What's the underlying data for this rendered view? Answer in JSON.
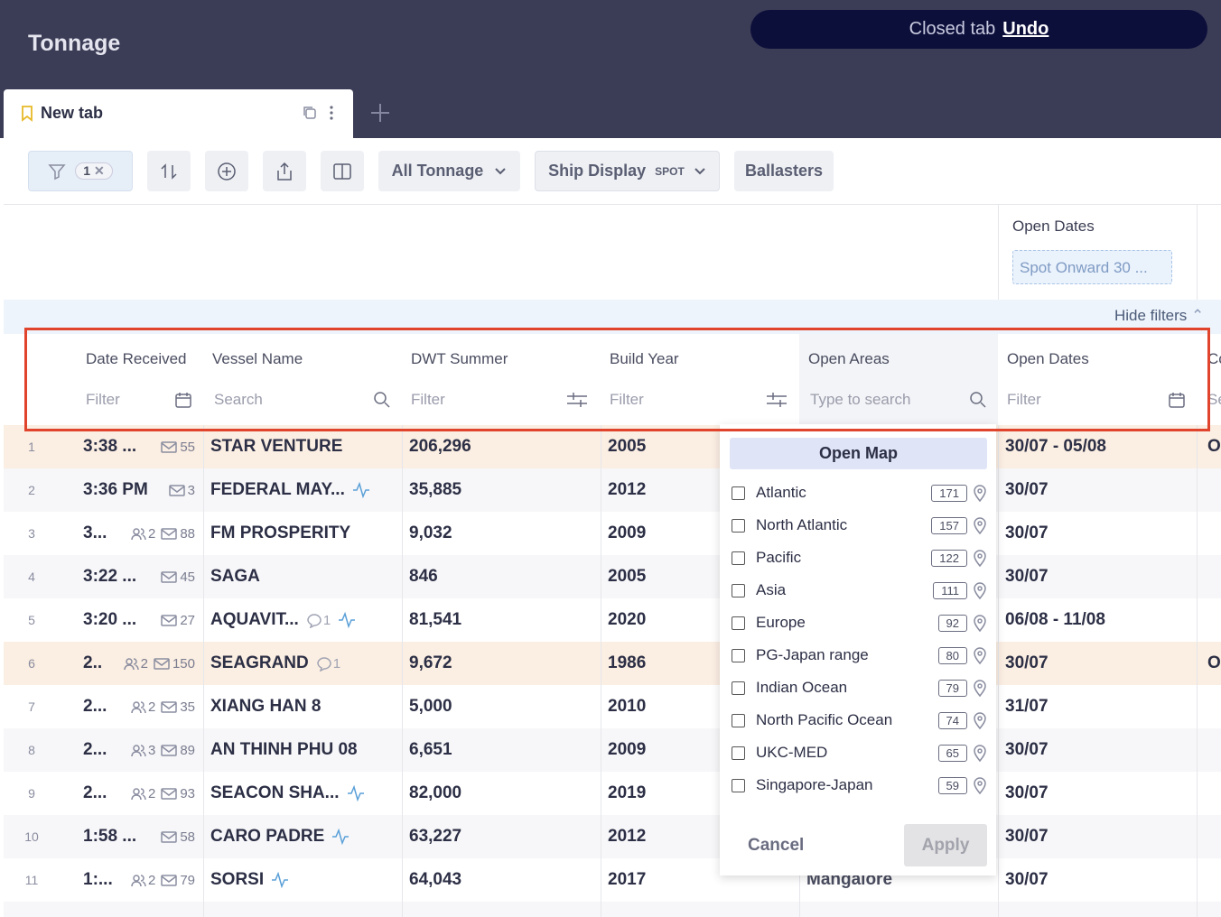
{
  "header": {
    "title": "Tonnage",
    "toast_text": "Closed tab",
    "toast_action": "Undo"
  },
  "tabs": [
    {
      "label": "New tab"
    }
  ],
  "toolbar": {
    "filter_count": "1",
    "view": "All Tonnage",
    "display": "Ship Display",
    "display_badge": "SPOT",
    "ballasters": "Ballasters"
  },
  "filter_panel": {
    "label": "Open Dates",
    "value": "Spot Onward 30 ...",
    "hide": "Hide filters"
  },
  "columns": [
    {
      "title": "Date Received",
      "placeholder": "Filter"
    },
    {
      "title": "Vessel Name",
      "placeholder": "Search"
    },
    {
      "title": "DWT Summer",
      "placeholder": "Filter"
    },
    {
      "title": "Build Year",
      "placeholder": "Filter"
    },
    {
      "title": "Open Areas",
      "placeholder": "Type to search"
    },
    {
      "title": "Open Dates",
      "placeholder": "Filter"
    },
    {
      "title": "Co",
      "placeholder": "Se"
    }
  ],
  "rows": [
    {
      "index": 1,
      "time": "3:38 ...",
      "mail": "55",
      "vessel": "STAR VENTURE",
      "dwt": "206,296",
      "year": "2005",
      "open_dates": "30/07 - 05/08",
      "extra": "O",
      "highlight": true
    },
    {
      "index": 2,
      "time": "3:36 PM",
      "mail": "3",
      "vessel": "FEDERAL MAY...",
      "activity": true,
      "dwt": "35,885",
      "year": "2012",
      "open_dates": "30/07"
    },
    {
      "index": 3,
      "time": "3...",
      "people": "2",
      "mail": "88",
      "vessel": "FM PROSPERITY",
      "dwt": "9,032",
      "year": "2009",
      "open_dates": "30/07"
    },
    {
      "index": 4,
      "time": "3:22 ...",
      "mail": "45",
      "vessel": "SAGA",
      "dwt": "846",
      "year": "2005",
      "open_dates": "30/07"
    },
    {
      "index": 5,
      "time": "3:20 ...",
      "mail": "27",
      "vessel": "AQUAVIT...",
      "comments": "1",
      "activity": true,
      "dwt": "81,541",
      "year": "2020",
      "open_dates": "06/08 - 11/08"
    },
    {
      "index": 6,
      "time": "2..",
      "people": "2",
      "mail": "150",
      "vessel": "SEAGRAND",
      "comments": "1",
      "dwt": "9,672",
      "year": "1986",
      "open_dates": "30/07",
      "extra": "O",
      "highlight": true
    },
    {
      "index": 7,
      "time": "2...",
      "people": "2",
      "mail": "35",
      "vessel": "XIANG HAN 8",
      "dwt": "5,000",
      "year": "2010",
      "open_dates": "31/07"
    },
    {
      "index": 8,
      "time": "2...",
      "people": "3",
      "mail": "89",
      "vessel": "AN THINH PHU 08",
      "dwt": "6,651",
      "year": "2009",
      "open_dates": "30/07"
    },
    {
      "index": 9,
      "time": "2...",
      "people": "2",
      "mail": "93",
      "vessel": "SEACON SHA...",
      "activity": true,
      "dwt": "82,000",
      "year": "2019",
      "open_dates": "30/07"
    },
    {
      "index": 10,
      "time": "1:58 ...",
      "mail": "58",
      "vessel": "CARO PADRE",
      "activity": true,
      "dwt": "63,227",
      "year": "2012",
      "open_dates": "30/07"
    },
    {
      "index": 11,
      "time": "1:...",
      "people": "2",
      "mail": "79",
      "vessel": "SORSI",
      "activity": true,
      "dwt": "64,043",
      "year": "2017",
      "area": "Mangalore",
      "open_dates": "30/07"
    }
  ],
  "dropdown": {
    "button": "Open Map",
    "options": [
      {
        "name": "Atlantic",
        "count": "171"
      },
      {
        "name": "North Atlantic",
        "count": "157"
      },
      {
        "name": "Pacific",
        "count": "122"
      },
      {
        "name": "Asia",
        "count": "111"
      },
      {
        "name": "Europe",
        "count": "92"
      },
      {
        "name": "PG-Japan range",
        "count": "80"
      },
      {
        "name": "Indian Ocean",
        "count": "79"
      },
      {
        "name": "North Pacific Ocean",
        "count": "74"
      },
      {
        "name": "UKC-MED",
        "count": "65"
      },
      {
        "name": "Singapore-Japan",
        "count": "59"
      }
    ],
    "cancel": "Cancel",
    "apply": "Apply"
  }
}
